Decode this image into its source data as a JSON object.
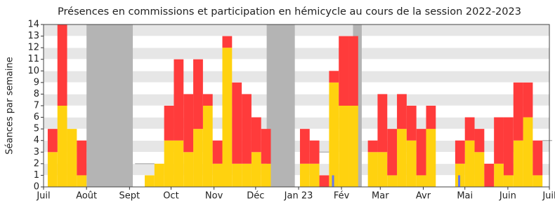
{
  "chart_data": {
    "type": "bar",
    "title": "Présences en commissions et participation en hémicycle au cours de la session 2022-2023",
    "y_label": "Séances par semaine",
    "xlim": [
      0,
      52.14
    ],
    "ylim": [
      0,
      14
    ],
    "yticks": [
      0,
      1,
      2,
      3,
      4,
      5,
      6,
      7,
      8,
      9,
      10,
      11,
      12,
      13,
      14
    ],
    "xticks": [
      {
        "value": 0,
        "label": "Juil"
      },
      {
        "value": 4.43,
        "label": "Août"
      },
      {
        "value": 8.86,
        "label": "Sept"
      },
      {
        "value": 13.14,
        "label": "Oct"
      },
      {
        "value": 17.57,
        "label": "Nov"
      },
      {
        "value": 21.86,
        "label": "Déc"
      },
      {
        "value": 26.29,
        "label": "Jan 23"
      },
      {
        "value": 30.71,
        "label": "Fév"
      },
      {
        "value": 34.71,
        "label": "Mar"
      },
      {
        "value": 39.14,
        "label": "Avr"
      },
      {
        "value": 43.43,
        "label": "Mai"
      },
      {
        "value": 47.86,
        "label": "Juin"
      },
      {
        "value": 52.14,
        "label": "Juil"
      }
    ],
    "shaded": [
      [
        4.43,
        9.2
      ],
      [
        23.0,
        25.9
      ],
      [
        31.9,
        32.8
      ]
    ],
    "shade_color": "#b4b4b4",
    "x": [
      0.43,
      1.43,
      2.43,
      3.43,
      4.43,
      5.43,
      6.43,
      7.43,
      8.43,
      9.43,
      10.43,
      11.43,
      12.43,
      13.43,
      14.43,
      15.43,
      16.43,
      17.43,
      18.43,
      19.43,
      20.43,
      21.43,
      22.43,
      23.43,
      24.43,
      25.43,
      26.43,
      27.43,
      28.43,
      29.43,
      30.43,
      31.43,
      32.43,
      33.43,
      34.43,
      35.43,
      36.43,
      37.43,
      38.43,
      39.43,
      40.43,
      41.43,
      42.43,
      43.43,
      44.43,
      45.43,
      46.43,
      47.43,
      48.43,
      49.43,
      50.43,
      51.43
    ],
    "series": [
      {
        "type": "bar",
        "color": "#ffd20f",
        "values": [
          3,
          7,
          5,
          1,
          0,
          0,
          0,
          0,
          0,
          0,
          1,
          2,
          4,
          4,
          3,
          5,
          7,
          2,
          12,
          2,
          2,
          3,
          2,
          0,
          0,
          0,
          2,
          2,
          0,
          9,
          7,
          7,
          0,
          3,
          3,
          1,
          5,
          4,
          1,
          5,
          0,
          0,
          2,
          4,
          3,
          0,
          2,
          1,
          4,
          6,
          1,
          0
        ]
      },
      {
        "type": "bar",
        "color": "#ff3b3b",
        "values": [
          2,
          7,
          0,
          3,
          0,
          0,
          0,
          0,
          0,
          0,
          0,
          0,
          3,
          7,
          5,
          6,
          1,
          2,
          1,
          7,
          6,
          3,
          3,
          0,
          0,
          0,
          3,
          2,
          1,
          1,
          6,
          6,
          0,
          1,
          5,
          4,
          3,
          3,
          4,
          2,
          0,
          0,
          2,
          2,
          2,
          2,
          4,
          5,
          5,
          3,
          3,
          0
        ]
      },
      {
        "type": "marker",
        "color": "#6677ee",
        "values": [
          null,
          null,
          null,
          null,
          null,
          null,
          null,
          null,
          null,
          null,
          null,
          null,
          null,
          null,
          null,
          null,
          null,
          null,
          null,
          null,
          null,
          null,
          null,
          null,
          null,
          null,
          null,
          null,
          null,
          1,
          null,
          null,
          null,
          null,
          null,
          null,
          null,
          null,
          null,
          null,
          null,
          null,
          1,
          null,
          null,
          null,
          null,
          null,
          null,
          null,
          null,
          null
        ]
      },
      {
        "type": "step",
        "color": "#aaaaaa",
        "values": [
          null,
          null,
          null,
          null,
          null,
          null,
          null,
          null,
          null,
          2,
          2,
          null,
          null,
          null,
          null,
          null,
          null,
          null,
          null,
          null,
          null,
          null,
          null,
          null,
          null,
          null,
          null,
          null,
          3,
          null,
          null,
          null,
          null,
          null,
          null,
          null,
          null,
          null,
          null,
          null,
          null,
          null,
          null,
          null,
          null,
          null,
          null,
          null,
          null,
          null,
          null,
          4
        ]
      }
    ]
  }
}
